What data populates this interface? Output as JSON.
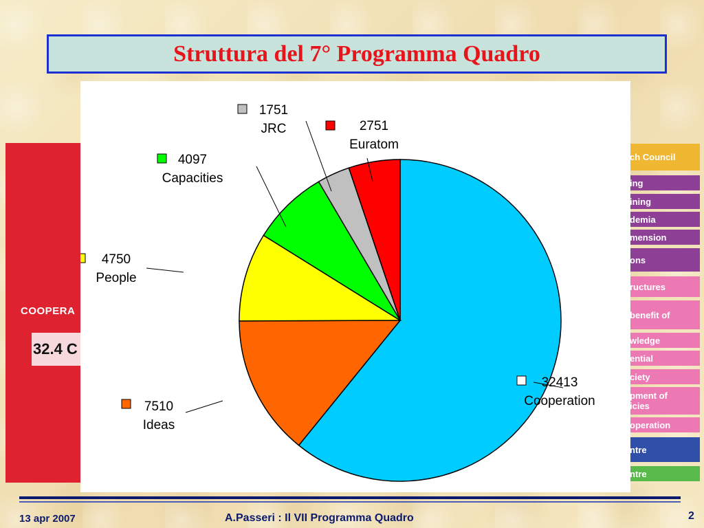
{
  "slide": {
    "title": "Struttura del 7° Programma Quadro",
    "footer_date": "13 apr 2007",
    "footer_center": "A.Passeri : Il VII Programma Quadro",
    "page_number": "2"
  },
  "background_diagram": {
    "left_label": "COOPERA",
    "left_value": "32.4 C",
    "right_items": [
      {
        "text": "ch Council",
        "color": "#f0b733"
      },
      {
        "text": "ing",
        "color": "#8e3f96"
      },
      {
        "text": "ining",
        "color": "#8e3f96"
      },
      {
        "text": "demia",
        "color": "#8e3f96"
      },
      {
        "text": "mension",
        "color": "#8e3f96"
      },
      {
        "text": "ons",
        "color": "#8e3f96"
      },
      {
        "text": "ructures",
        "color": "#ec79b4"
      },
      {
        "text": "benefit of",
        "color": "#ec79b4"
      },
      {
        "text": "wledge",
        "color": "#ec79b4"
      },
      {
        "text": "ential",
        "color": "#ec79b4"
      },
      {
        "text": "ciety",
        "color": "#ec79b4"
      },
      {
        "text": "pment of\nicies",
        "color": "#ec79b4"
      },
      {
        "text": "operation",
        "color": "#ec79b4"
      },
      {
        "text": "ntre",
        "color": "#2f4fa8"
      },
      {
        "text": "ntre",
        "color": "#5ab94b"
      }
    ]
  },
  "chart_data": {
    "type": "pie",
    "start": "clockwise from 12 o'clock",
    "slices": [
      {
        "name": "Cooperation",
        "value": 32413,
        "label_value": "32413",
        "color": "#00ccff",
        "legend_color": "#ffffff"
      },
      {
        "name": "Ideas",
        "value": 7510,
        "label_value": "7510",
        "color": "#ff6600",
        "legend_color": "#ff6600"
      },
      {
        "name": "People",
        "value": 4750,
        "label_value": "4750",
        "color": "#ffff00",
        "legend_color": "#ffff00"
      },
      {
        "name": "Capacities",
        "value": 4097,
        "label_value": "4097",
        "color": "#00ff00",
        "legend_color": "#00ff00"
      },
      {
        "name": "JRC",
        "value": 1751,
        "label_value": "1751",
        "color": "#c0c0c0",
        "legend_color": "#c0c0c0"
      },
      {
        "name": "Euratom",
        "value": 2751,
        "label_value": "2751",
        "color": "#ff0000",
        "legend_color": "#ff0000"
      }
    ]
  }
}
